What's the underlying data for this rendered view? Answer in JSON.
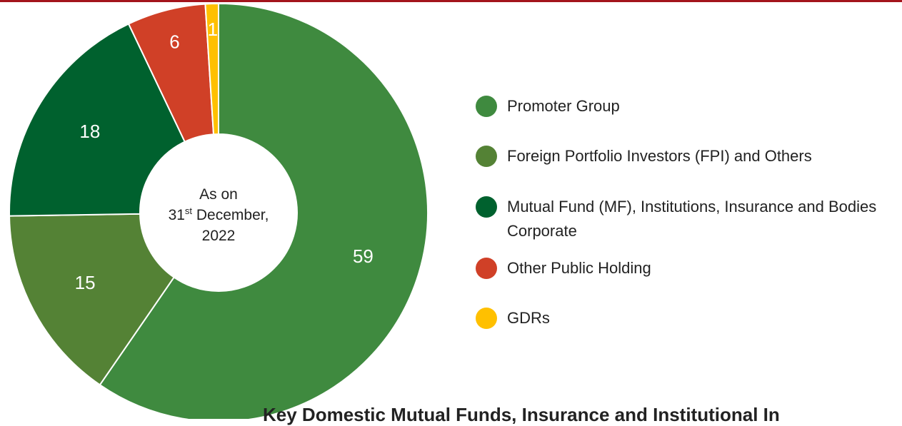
{
  "chart_data": {
    "type": "donut",
    "categories": [
      "Promoter Group",
      "Foreign Portfolio Investors (FPI) and Others",
      "Mutual Fund (MF), Institutions, Insurance and Bodies Corporate",
      "Other Public Holding",
      "GDRs"
    ],
    "values": [
      59,
      15,
      18,
      6,
      1
    ],
    "colors": [
      "#3f8a3f",
      "#548235",
      "#00612e",
      "#d04027",
      "#ffc000"
    ],
    "center_text": {
      "line1": "As on",
      "day": "31",
      "day_suffix": "st",
      "month": " December,",
      "year": "2022"
    },
    "footer": "Key Domestic Mutual Funds, Insurance and Institutional In"
  }
}
